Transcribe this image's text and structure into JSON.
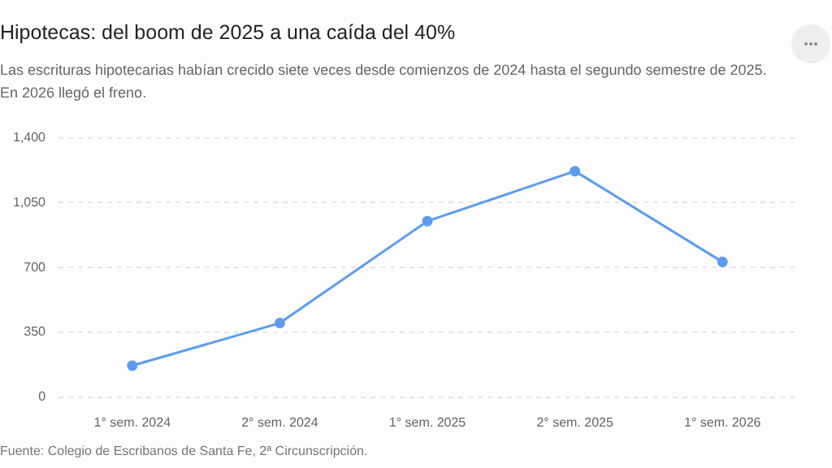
{
  "chart_data": {
    "type": "line",
    "title": "Hipotecas: del boom de 2025 a una caída del 40%",
    "subtitle": "Las escrituras hipotecarias habían crecido siete veces desde comienzos de 2024 hasta el segundo semestre de 2025. En 2026 llegó el freno.",
    "categories": [
      "1° sem. 2024",
      "2° sem. 2024",
      "1° sem. 2025",
      "2° sem. 2025",
      "1° sem. 2026"
    ],
    "series": [
      {
        "color": "#5b9cf0",
        "values": [
          170,
          400,
          950,
          1220,
          730
        ]
      }
    ],
    "ylim": [
      0,
      1400
    ],
    "yticks": [
      0,
      {
        "value": 350,
        "label": "350"
      },
      {
        "value": 700,
        "label": "700"
      },
      {
        "value": 1050,
        "label": "1,050"
      },
      {
        "value": 1400,
        "label": "1,400"
      }
    ],
    "grid": "y",
    "legend": false,
    "marker": "circle",
    "line_style": "solid",
    "annotations": [
      "Fuente: Colegio de Escribanos de Santa Fe, 2ª Circunscripción."
    ]
  }
}
